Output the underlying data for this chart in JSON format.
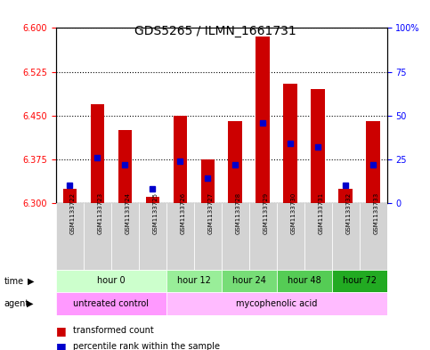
{
  "title": "GDS5265 / ILMN_1661731",
  "samples": [
    "GSM1133722",
    "GSM1133723",
    "GSM1133724",
    "GSM1133725",
    "GSM1133726",
    "GSM1133727",
    "GSM1133728",
    "GSM1133729",
    "GSM1133730",
    "GSM1133731",
    "GSM1133732",
    "GSM1133733"
  ],
  "transformed_count": [
    6.325,
    6.47,
    6.425,
    6.31,
    6.45,
    6.375,
    6.44,
    6.585,
    6.505,
    6.495,
    6.325,
    6.44
  ],
  "percentile_rank": [
    10,
    26,
    22,
    8,
    24,
    14,
    22,
    46,
    34,
    32,
    10,
    22
  ],
  "ylim_left": [
    6.3,
    6.6
  ],
  "ylim_right": [
    0,
    100
  ],
  "yticks_left": [
    6.3,
    6.375,
    6.45,
    6.525,
    6.6
  ],
  "yticks_right": [
    0,
    25,
    50,
    75,
    100
  ],
  "ytick_labels_right": [
    "0",
    "25",
    "50",
    "75",
    "100%"
  ],
  "bar_color": "#cc0000",
  "blue_color": "#0000cc",
  "base_value": 6.3,
  "time_groups": [
    {
      "label": "hour 0",
      "indices": [
        0,
        1,
        2,
        3
      ],
      "color": "#ccffcc"
    },
    {
      "label": "hour 12",
      "indices": [
        4,
        5
      ],
      "color": "#99ee99"
    },
    {
      "label": "hour 24",
      "indices": [
        6,
        7
      ],
      "color": "#66dd66"
    },
    {
      "label": "hour 48",
      "indices": [
        8,
        9
      ],
      "color": "#33bb33"
    },
    {
      "label": "hour 72",
      "indices": [
        10,
        11
      ],
      "color": "#00aa00"
    }
  ],
  "agent_groups": [
    {
      "label": "untreated control",
      "indices": [
        0,
        1,
        2,
        3
      ],
      "color": "#ff99ff"
    },
    {
      "label": "mycophenolic acid",
      "indices": [
        4,
        5,
        6,
        7,
        8,
        9,
        10,
        11
      ],
      "color": "#ffaaff"
    }
  ],
  "sample_bg_color": "#d3d3d3",
  "legend_red_label": "transformed count",
  "legend_blue_label": "percentile rank within the sample",
  "bar_width": 0.5
}
